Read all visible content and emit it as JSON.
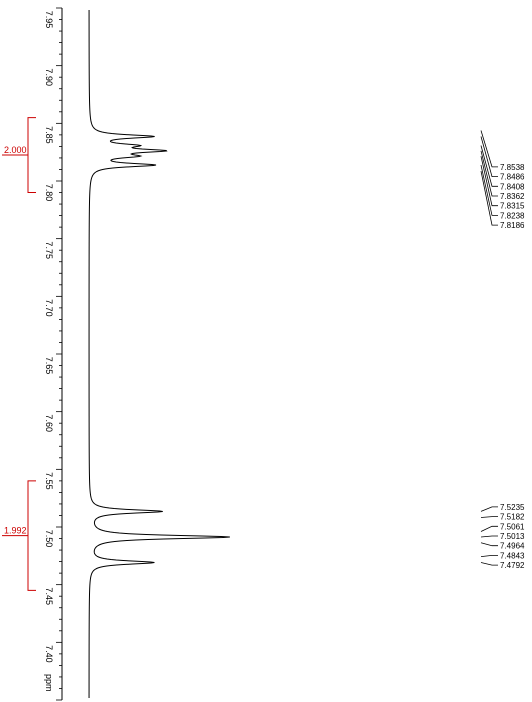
{
  "chart_data": {
    "type": "line",
    "title": "",
    "xlabel": "ppm",
    "orientation": "vertical ppm axis (decreasing downward), spectrum drawn horizontally",
    "axis": {
      "range": [
        7.96,
        7.36
      ],
      "unit_label": "ppm",
      "ticks": [
        "7.95",
        "7.90",
        "7.85",
        "7.80",
        "7.75",
        "7.70",
        "7.65",
        "7.60",
        "7.55",
        "7.50",
        "7.45",
        "7.40"
      ]
    },
    "integrals": [
      {
        "label": "2.000",
        "from": 7.865,
        "to": 7.8
      },
      {
        "label": "1.992",
        "from": 7.55,
        "to": 7.455
      }
    ],
    "peaks": [
      {
        "ppm": 7.8538,
        "height": 0.0
      },
      {
        "ppm": 7.8486,
        "height": 0.44
      },
      {
        "ppm": 7.8408,
        "height": 0.27
      },
      {
        "ppm": 7.8362,
        "height": 0.47
      },
      {
        "ppm": 7.8315,
        "height": 0.27
      },
      {
        "ppm": 7.8238,
        "height": 0.45
      },
      {
        "ppm": 7.8186,
        "height": 0.0
      },
      {
        "ppm": 7.5235,
        "height": 0.52
      },
      {
        "ppm": 7.5182,
        "height": 0.0
      },
      {
        "ppm": 7.5061,
        "height": 0.0
      },
      {
        "ppm": 7.5013,
        "height": 1.0
      },
      {
        "ppm": 7.4964,
        "height": 0.0
      },
      {
        "ppm": 7.4843,
        "height": 0.0
      },
      {
        "ppm": 7.4792,
        "height": 0.46
      }
    ],
    "peak_labels_top": [
      "7.8538",
      "7.8486",
      "7.8408",
      "7.8362",
      "7.8315",
      "7.8238",
      "7.8186"
    ],
    "peak_labels_bottom": [
      "7.5235",
      "7.5182",
      "7.5061",
      "7.5013",
      "7.4964",
      "7.4843",
      "7.4792"
    ],
    "colors": {
      "spectrum": "#000000",
      "integral": "#cc0000",
      "axis": "#000000"
    }
  }
}
